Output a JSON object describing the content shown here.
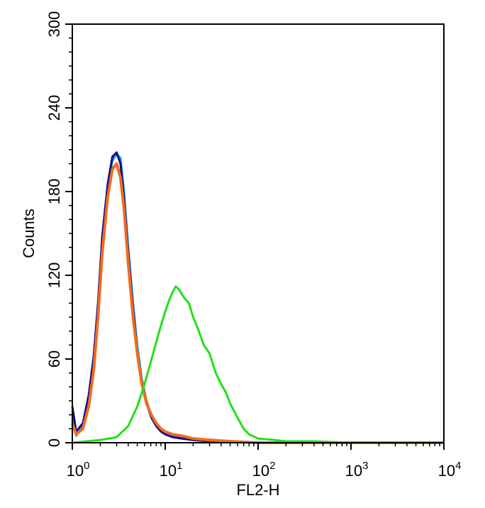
{
  "chart_data": {
    "type": "line",
    "xlabel": "FL2-H",
    "ylabel": "Counts",
    "x_scale": "log",
    "xlim": [
      1,
      10000
    ],
    "ylim": [
      0,
      300
    ],
    "grid": false,
    "x_ticks": [
      {
        "base": "10",
        "exp": "0",
        "value": 1
      },
      {
        "base": "10",
        "exp": "1",
        "value": 10
      },
      {
        "base": "10",
        "exp": "2",
        "value": 100
      },
      {
        "base": "10",
        "exp": "3",
        "value": 1000
      },
      {
        "base": "10",
        "exp": "4",
        "value": 10000
      }
    ],
    "y_ticks": [
      "0",
      "60",
      "120",
      "180",
      "240",
      "300"
    ],
    "series": [
      {
        "color": "#1a9be0",
        "x": [
          1,
          1.1,
          1.3,
          1.5,
          1.7,
          1.9,
          2.1,
          2.4,
          2.7,
          3.0,
          3.3,
          3.6,
          4.0,
          4.5,
          5.0,
          5.6,
          6.3,
          7.1,
          8.0,
          9.0,
          10,
          12,
          15,
          20,
          30,
          50,
          100,
          1000,
          10000
        ],
        "y": [
          16,
          5,
          12,
          30,
          58,
          98,
          142,
          182,
          202,
          207,
          204,
          180,
          140,
          100,
          70,
          46,
          30,
          20,
          14,
          9,
          7,
          5,
          4,
          3,
          2,
          1,
          0,
          0,
          0
        ]
      },
      {
        "color": "#0d0d8c",
        "x": [
          1,
          1.1,
          1.3,
          1.5,
          1.7,
          1.9,
          2.1,
          2.4,
          2.7,
          3.0,
          3.3,
          3.6,
          4.0,
          4.5,
          5.0,
          5.6,
          6.3,
          7.1,
          8.0,
          9.0,
          10,
          12,
          15,
          20,
          30,
          50,
          100,
          1000,
          10000
        ],
        "y": [
          26,
          8,
          14,
          34,
          62,
          102,
          148,
          185,
          205,
          208,
          200,
          175,
          135,
          96,
          66,
          43,
          28,
          18,
          12,
          8,
          6,
          4,
          3,
          2,
          1,
          1,
          0,
          0,
          0
        ]
      },
      {
        "color": "#f26b1d",
        "x": [
          1,
          1.1,
          1.3,
          1.5,
          1.7,
          1.9,
          2.1,
          2.4,
          2.7,
          3.0,
          3.3,
          3.6,
          4.0,
          4.5,
          5.0,
          5.6,
          6.3,
          7.1,
          8.0,
          9.0,
          10,
          12,
          15,
          20,
          30,
          50,
          100,
          1000,
          10000
        ],
        "y": [
          14,
          6,
          10,
          26,
          52,
          92,
          136,
          176,
          196,
          200,
          190,
          168,
          128,
          90,
          64,
          42,
          28,
          20,
          14,
          10,
          8,
          6,
          5,
          3,
          2,
          1,
          0,
          0,
          0
        ]
      },
      {
        "color": "#22e01a",
        "x": [
          1,
          2,
          3,
          4,
          5,
          6,
          7,
          8,
          9,
          10,
          11,
          12,
          13,
          14,
          16,
          18,
          20,
          23,
          26,
          30,
          35,
          40,
          45,
          50,
          60,
          70,
          80,
          100,
          150,
          200,
          400,
          1000,
          3000,
          10000
        ],
        "y": [
          0,
          2,
          4,
          12,
          26,
          42,
          58,
          72,
          84,
          94,
          102,
          108,
          112,
          110,
          104,
          100,
          90,
          80,
          70,
          64,
          50,
          42,
          36,
          28,
          18,
          10,
          6,
          3,
          2,
          1,
          1,
          0,
          0,
          0
        ]
      }
    ]
  }
}
